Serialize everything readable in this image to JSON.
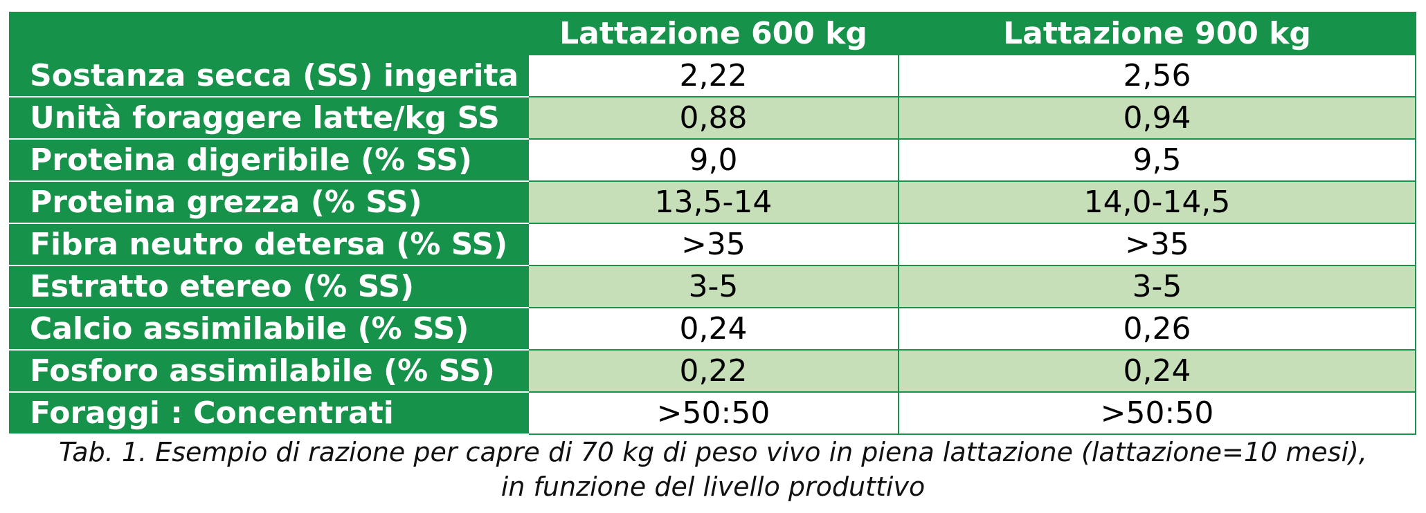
{
  "table": {
    "columns": [
      "Lattazione 600 kg",
      "Lattazione 900 kg"
    ],
    "rows": [
      [
        "Sostanza secca (SS) ingerita",
        "2,22",
        "2,56"
      ],
      [
        "Unità foraggere latte/kg SS",
        "0,88",
        "0,94"
      ],
      [
        "Proteina digeribile (% SS)",
        "9,0",
        "9,5"
      ],
      [
        "Proteina grezza (% SS)",
        "13,5-14",
        "14,0-14,5"
      ],
      [
        "Fibra neutro detersa (% SS)",
        ">35",
        ">35"
      ],
      [
        "Estratto etereo (% SS)",
        "3-5",
        "3-5"
      ],
      [
        "Calcio assimilabile (% SS)",
        "0,24",
        "0,26"
      ],
      [
        "Fosforo assimilabile (% SS)",
        "0,22",
        "0,24"
      ],
      [
        "Foraggi : Concentrati",
        ">50:50",
        ">50:50"
      ]
    ]
  },
  "caption": {
    "line1": "Tab. 1. Esempio di razione per capre di 70 kg di peso vivo in piena lattazione (lattazione=10 mesi),",
    "line2": "in funzione del livello produttivo"
  }
}
